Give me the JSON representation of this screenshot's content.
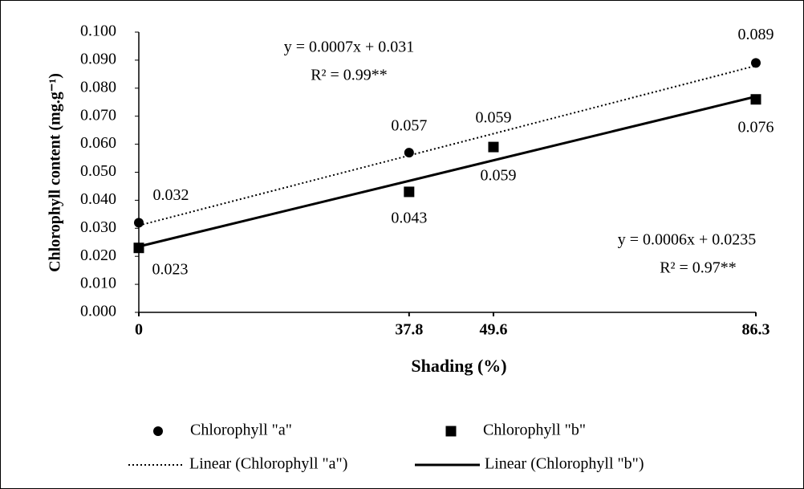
{
  "chart_data": {
    "type": "scatter",
    "x_label": "Shading (%)",
    "y_label": "Chlorophyll  content (mg.g⁻¹)",
    "x": [
      0,
      37.8,
      49.6,
      86.3
    ],
    "xlim": [
      0,
      86.3
    ],
    "xticks": [
      0,
      37.8,
      49.6,
      86.3
    ],
    "ylim": [
      0,
      0.1
    ],
    "yticks": [
      {
        "value": 0,
        "label": "0.000"
      },
      {
        "value": 0.01,
        "label": "0.010"
      },
      {
        "value": 0.02,
        "label": "0.020"
      },
      {
        "value": 0.03,
        "label": "0.030"
      },
      {
        "value": 0.04,
        "label": "0.040"
      },
      {
        "value": 0.05,
        "label": "0.050"
      },
      {
        "value": 0.06,
        "label": "0.060"
      },
      {
        "value": 0.07,
        "label": "0.070"
      },
      {
        "value": 0.08,
        "label": "0.080"
      },
      {
        "value": 0.09,
        "label": "0.090"
      },
      {
        "value": 0.1,
        "label": "0.100"
      }
    ],
    "series": [
      {
        "name": "Chlorophyll \"a\"",
        "marker": "circle",
        "color": "#000000",
        "values": [
          0.032,
          0.057,
          0.059,
          0.089
        ]
      },
      {
        "name": "Chlorophyll \"b\"",
        "marker": "square",
        "color": "#000000",
        "values": [
          0.023,
          0.043,
          0.059,
          0.076
        ]
      }
    ],
    "trendlines": [
      {
        "name": "Linear (Chlorophyll \"a\")",
        "style": "dotted",
        "color": "#000000",
        "x": [
          0,
          86.3
        ],
        "values": [
          0.031,
          0.088
        ]
      },
      {
        "name": "Linear (Chlorophyll \"b\")",
        "style": "solid",
        "color": "#000000",
        "x": [
          0,
          86.3
        ],
        "values": [
          0.0235,
          0.077
        ]
      }
    ],
    "annotations": [
      "y = 0.0007x  + 0.031",
      "R² = 0.99**",
      "y = 0.0006x  + 0.0235",
      "R² = 0.97**"
    ]
  }
}
